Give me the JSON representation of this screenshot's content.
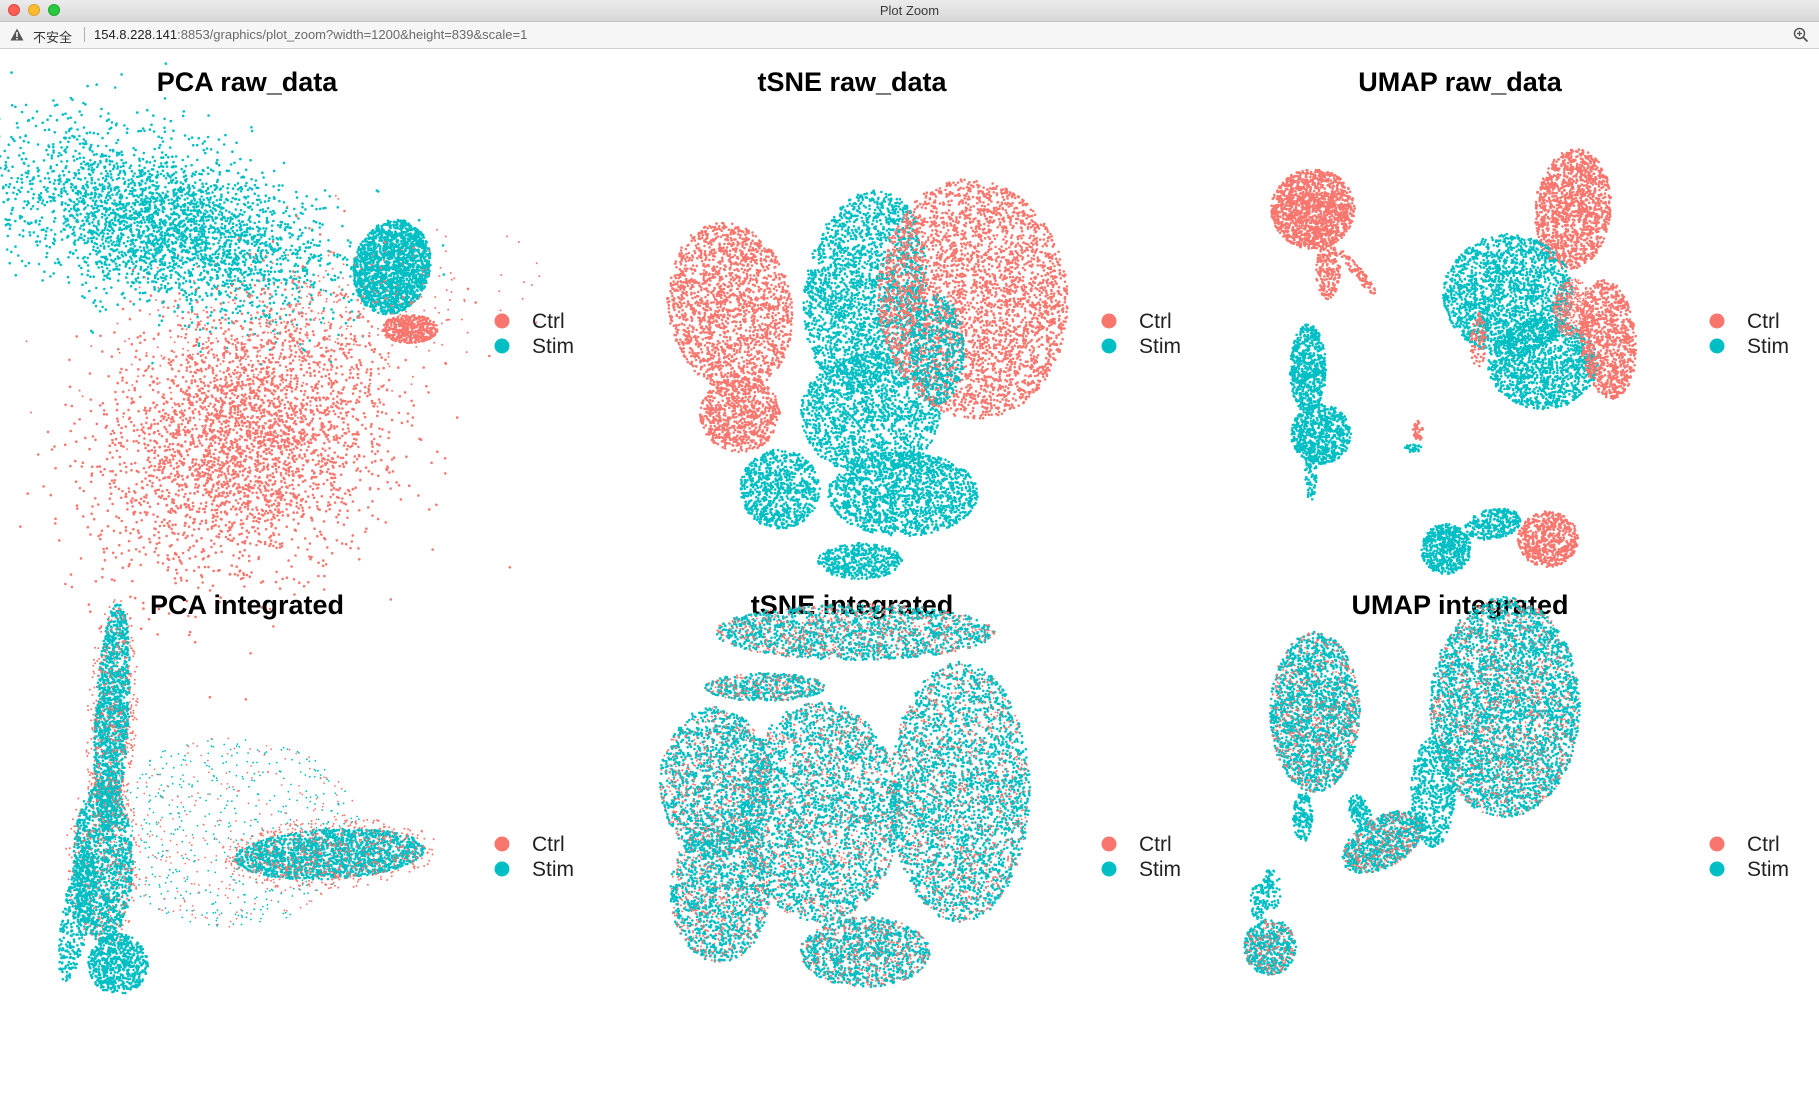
{
  "window": {
    "title": "Plot Zoom"
  },
  "urlbar": {
    "security_label": "不安全",
    "url_host": "154.8.228.141",
    "url_rest": ":8853/graphics/plot_zoom?width=1200&height=839&scale=1"
  },
  "colors": {
    "ctrl": "#f8766d",
    "stim": "#00bfc4"
  },
  "chart_data": [
    {
      "type": "scatter",
      "title": "PCA raw_data",
      "legend": {
        "entries": [
          "Ctrl",
          "Stim"
        ],
        "placement": "right"
      },
      "grid": false,
      "axes": "none",
      "series": [
        {
          "name": "Ctrl",
          "clusters": [
            {
              "x": 0.45,
              "y": -0.45
            }
          ]
        },
        {
          "name": "Stim",
          "clusters": [
            {
              "x": 0.3,
              "y": 0.7
            },
            {
              "x": 0.85,
              "y": 0.4
            }
          ]
        }
      ]
    },
    {
      "type": "scatter",
      "title": "tSNE raw_data",
      "legend": {
        "entries": [
          "Ctrl",
          "Stim"
        ],
        "placement": "right"
      },
      "grid": false,
      "axes": "none",
      "series": [
        {
          "name": "Ctrl",
          "clusters": [
            {
              "x": -0.6,
              "y": 0.2
            },
            {
              "x": 0.5,
              "y": 0.4
            }
          ]
        },
        {
          "name": "Stim",
          "clusters": [
            {
              "x": 0.0,
              "y": 0.3
            },
            {
              "x": -0.1,
              "y": -0.6
            }
          ]
        }
      ]
    },
    {
      "type": "scatter",
      "title": "UMAP raw_data",
      "legend": {
        "entries": [
          "Ctrl",
          "Stim"
        ],
        "placement": "right"
      },
      "grid": false,
      "axes": "none",
      "series": [
        {
          "name": "Ctrl",
          "clusters": [
            {
              "x": -0.8,
              "y": 0.8
            },
            {
              "x": 0.6,
              "y": 0.8
            }
          ]
        },
        {
          "name": "Stim",
          "clusters": [
            {
              "x": 0.2,
              "y": 0.4
            },
            {
              "x": -0.7,
              "y": -0.1
            }
          ]
        }
      ]
    },
    {
      "type": "scatter",
      "title": "PCA integrated",
      "legend": {
        "entries": [
          "Ctrl",
          "Stim"
        ],
        "placement": "right"
      },
      "grid": false,
      "axes": "none",
      "series": [
        {
          "name": "Ctrl",
          "clusters": [
            {
              "x": -0.8,
              "y": 0.3
            },
            {
              "x": 0.5,
              "y": -0.2
            }
          ]
        },
        {
          "name": "Stim",
          "clusters": [
            {
              "x": -0.8,
              "y": 0.3
            },
            {
              "x": 0.5,
              "y": -0.2
            }
          ]
        }
      ]
    },
    {
      "type": "scatter",
      "title": "tSNE integrated",
      "legend": {
        "entries": [
          "Ctrl",
          "Stim"
        ],
        "placement": "right"
      },
      "grid": false,
      "axes": "none",
      "series": [
        {
          "name": "Ctrl",
          "clusters": [
            {
              "x": 0.0,
              "y": 0.0
            }
          ]
        },
        {
          "name": "Stim",
          "clusters": [
            {
              "x": 0.0,
              "y": 0.0
            }
          ]
        }
      ]
    },
    {
      "type": "scatter",
      "title": "UMAP integrated",
      "legend": {
        "entries": [
          "Ctrl",
          "Stim"
        ],
        "placement": "right"
      },
      "grid": false,
      "axes": "none",
      "series": [
        {
          "name": "Ctrl",
          "clusters": [
            {
              "x": 0.3,
              "y": 0.4
            },
            {
              "x": -0.7,
              "y": 0.2
            }
          ]
        },
        {
          "name": "Stim",
          "clusters": [
            {
              "x": 0.3,
              "y": 0.4
            },
            {
              "x": -0.7,
              "y": 0.2
            }
          ]
        }
      ]
    }
  ]
}
